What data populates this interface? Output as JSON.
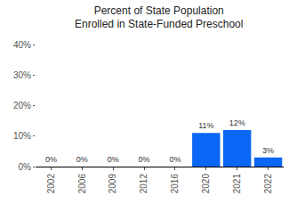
{
  "chart_data": {
    "type": "bar",
    "title": "Percent of State Population\nEnrolled in State-Funded Preschool",
    "categories": [
      "2002",
      "2006",
      "2009",
      "2012",
      "2016",
      "2020",
      "2021",
      "2022"
    ],
    "values": [
      0,
      0,
      0,
      0,
      0,
      11,
      12,
      3
    ],
    "value_labels": [
      "0%",
      "0%",
      "0%",
      "0%",
      "0%",
      "11%",
      "12%",
      "3%"
    ],
    "data_labels": true,
    "color": "#0a66f5",
    "ylim": [
      0,
      40
    ],
    "yticks": [
      {
        "value": 0,
        "label": "0%"
      },
      {
        "value": 10,
        "label": "10%"
      },
      {
        "value": 20,
        "label": "20%"
      },
      {
        "value": 30,
        "label": "30%"
      },
      {
        "value": 40,
        "label": "40%"
      }
    ],
    "grid": false
  }
}
